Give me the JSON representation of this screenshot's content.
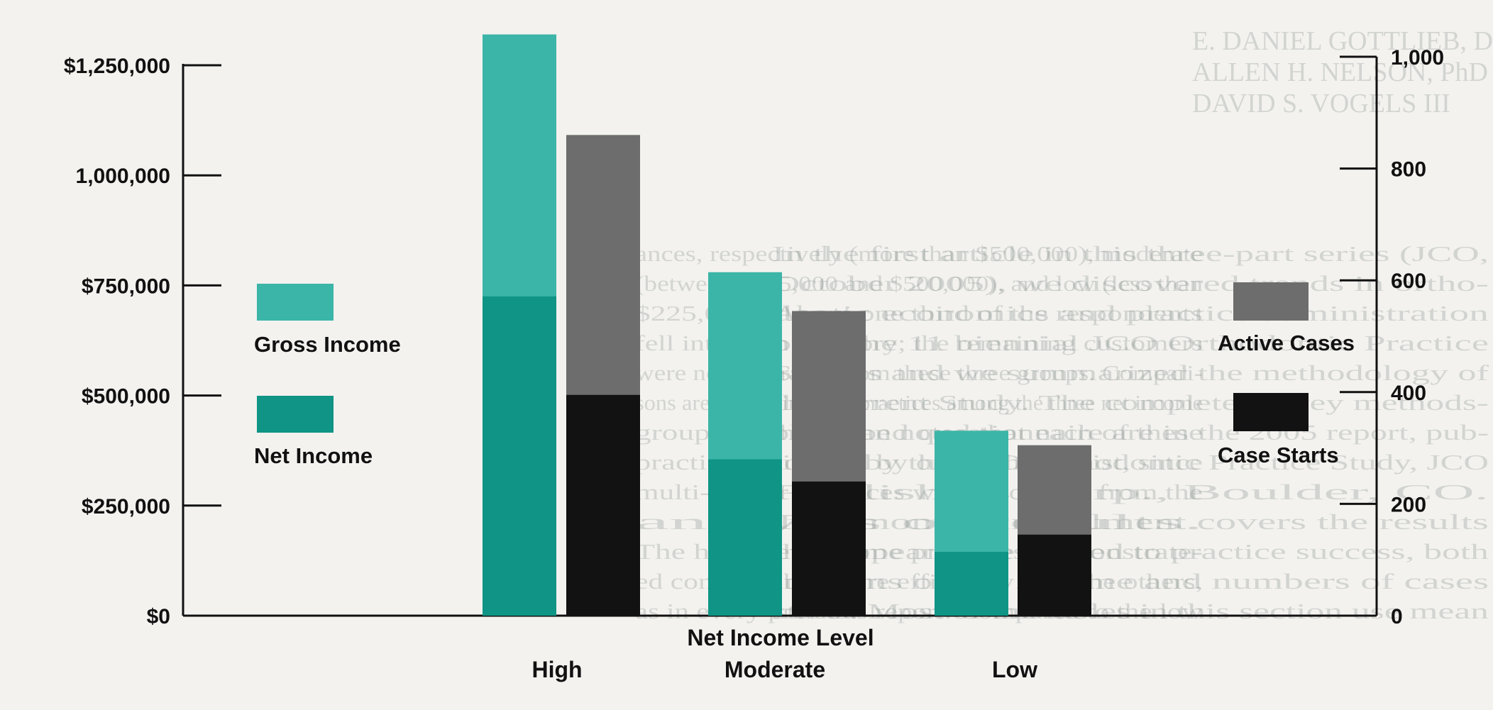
{
  "chart_data": {
    "type": "bar",
    "xlabel": "Net Income Level",
    "categories": [
      "High",
      "Moderate",
      "Low"
    ],
    "left_axis": {
      "ylim": [
        0,
        1250000
      ],
      "ticks": [
        0,
        250000,
        500000,
        750000,
        1000000,
        1250000
      ],
      "tick_labels": [
        "$0",
        "$250,000",
        "$500,000",
        "$750,000",
        "1,000,000",
        "$1,250,000"
      ]
    },
    "right_axis": {
      "ylim": [
        0,
        1000
      ],
      "ticks": [
        0,
        200,
        400,
        600,
        800,
        1000
      ],
      "tick_labels": [
        "0",
        "200",
        "400",
        "600",
        "800",
        "1,000"
      ]
    },
    "series": [
      {
        "name": "Gross Income",
        "axis": "left",
        "values": [
          1320000,
          780000,
          420000
        ],
        "color": "#3bb5a7"
      },
      {
        "name": "Net Income",
        "axis": "left",
        "values": [
          725000,
          355000,
          145000
        ],
        "color": "#0f9485"
      },
      {
        "name": "Active Cases",
        "axis": "right",
        "values": [
          860,
          545,
          305
        ],
        "color": "#6d6d6d"
      },
      {
        "name": "Case Starts",
        "axis": "right",
        "values": [
          395,
          240,
          145
        ],
        "color": "#121212"
      }
    ],
    "grid": false,
    "legend": [
      "left",
      "right"
    ]
  },
  "background_text": {
    "header_lines": [
      "E. DANIEL GOTTLIEB, DDS",
      "ALLEN H. NELSON, PhD",
      "DAVID S. VOGELS III"
    ],
    "middle_column": [
      "ances, respectively (more than $500,000), moderate",
      "(between $225,000 and $500,000), and low (less than",
      "$225,000). About one third of the respondents",
      "fell into each category; the remaining customers",
      "were not separated from these three groups. Compari-",
      "sons are shown in these practices among the three net income",
      "groups. It should be noted that each of these",
      "practices is owned by one orthodontist, since",
      "multi-doctor practices were excluded from the",
      "analysis of results.",
      "The high net income practices demonstrate-",
      "ed considerably more efficiency than the others,",
      "as in every previous report. Compared to the low"
    ],
    "right_column": [
      "In the first article in this three-part series (JCO,",
      "October 2005), we discovered trends in ortho-",
      "dontic economics and practice administration",
      "over the 11 biennial JCO Orthodontic Practice",
      "Studies and we summarized the methodology of",
      "the current Study. The complete survey methods-",
      "ology and questionnaire are in the 2005 report, pub-",
      "lished by the JCO Orthodontic Practice Study, JCO",
      "Publishers Corp., Boulder, CO.",
      "This month's installment covers the results",
      "that appear to be related to practice success, both",
      "in terms of net income and numbers of cases",
      "starts. Most of the tables in this section use mean"
    ]
  }
}
